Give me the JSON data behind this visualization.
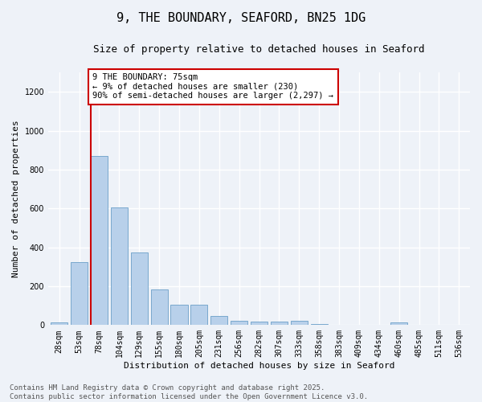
{
  "title": "9, THE BOUNDARY, SEAFORD, BN25 1DG",
  "subtitle": "Size of property relative to detached houses in Seaford",
  "xlabel": "Distribution of detached houses by size in Seaford",
  "ylabel": "Number of detached properties",
  "categories": [
    "28sqm",
    "53sqm",
    "78sqm",
    "104sqm",
    "129sqm",
    "155sqm",
    "180sqm",
    "205sqm",
    "231sqm",
    "256sqm",
    "282sqm",
    "307sqm",
    "333sqm",
    "358sqm",
    "383sqm",
    "409sqm",
    "434sqm",
    "460sqm",
    "485sqm",
    "511sqm",
    "536sqm"
  ],
  "values": [
    15,
    325,
    870,
    605,
    375,
    185,
    105,
    105,
    45,
    20,
    18,
    18,
    20,
    5,
    0,
    0,
    0,
    12,
    0,
    0,
    0
  ],
  "bar_color": "#b8d0ea",
  "bar_edge_color": "#6a9fc8",
  "vline_x_index": 2,
  "vline_color": "#cc0000",
  "annotation_title": "9 THE BOUNDARY: 75sqm",
  "annotation_line1": "← 9% of detached houses are smaller (230)",
  "annotation_line2": "90% of semi-detached houses are larger (2,297) →",
  "annotation_box_color": "#ffffff",
  "annotation_box_edge": "#cc0000",
  "ylim": [
    0,
    1300
  ],
  "yticks": [
    0,
    200,
    400,
    600,
    800,
    1000,
    1200
  ],
  "footer1": "Contains HM Land Registry data © Crown copyright and database right 2025.",
  "footer2": "Contains public sector information licensed under the Open Government Licence v3.0.",
  "bg_color": "#eef2f8",
  "grid_color": "#ffffff",
  "title_fontsize": 11,
  "subtitle_fontsize": 9,
  "axis_label_fontsize": 8,
  "tick_fontsize": 7,
  "annotation_fontsize": 7.5,
  "footer_fontsize": 6.5
}
